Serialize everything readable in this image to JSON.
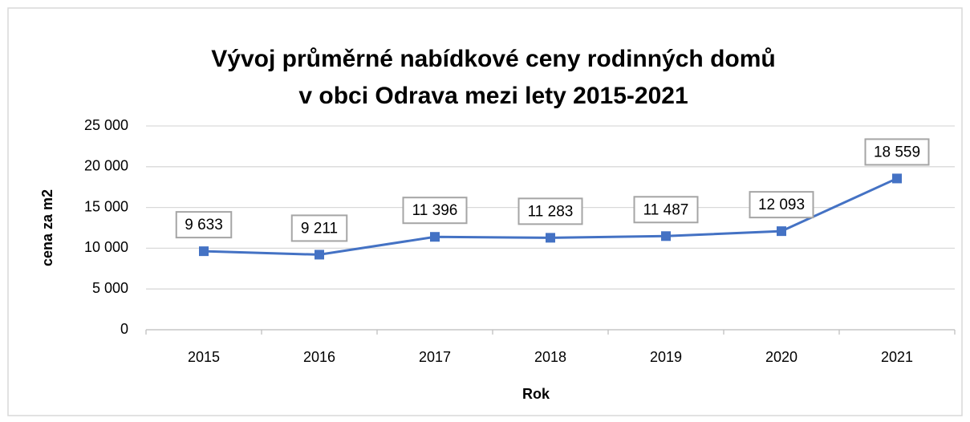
{
  "chart_data": {
    "type": "line",
    "title": [
      "Vývoj průměrné nabídkové ceny rodinných domů",
      "v obci Odrava mezi lety 2015-2021"
    ],
    "x_label": "Rok",
    "y_label": "cena za m2",
    "categories": [
      "2015",
      "2016",
      "2017",
      "2018",
      "2019",
      "2020",
      "2021"
    ],
    "values": [
      9633,
      9211,
      11396,
      11283,
      11487,
      12093,
      18559
    ],
    "value_labels": [
      "9 633",
      "9 211",
      "11 396",
      "11 283",
      "11 487",
      "12 093",
      "18 559"
    ],
    "color": "#4472c4",
    "ylim": [
      0,
      25000
    ],
    "yticks": [
      {
        "value": 0,
        "label": "0"
      },
      {
        "value": 5000,
        "label": "5 000"
      },
      {
        "value": 10000,
        "label": "10 000"
      },
      {
        "value": 15000,
        "label": "15 000"
      },
      {
        "value": 20000,
        "label": "20 000"
      },
      {
        "value": 25000,
        "label": "25 000"
      }
    ],
    "grid": true
  }
}
